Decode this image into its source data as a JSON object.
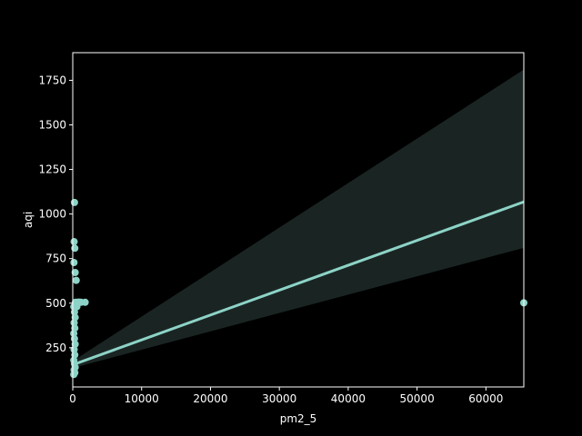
{
  "chart_data": {
    "type": "scatter",
    "xlabel": "pm2_5",
    "ylabel": "aqi",
    "xlim": [
      0,
      65500
    ],
    "ylim": [
      30,
      1905
    ],
    "x_ticks": [
      0,
      10000,
      20000,
      30000,
      40000,
      50000,
      60000
    ],
    "y_ticks": [
      250,
      500,
      750,
      1000,
      1250,
      1500,
      1750
    ],
    "colors": {
      "background": "#000000",
      "axes": "#ffffff",
      "series": "#8dd3c7",
      "band": "#1a2523"
    },
    "points": [
      [
        250,
        1065
      ],
      [
        200,
        845
      ],
      [
        300,
        808
      ],
      [
        180,
        728
      ],
      [
        350,
        672
      ],
      [
        500,
        628
      ],
      [
        800,
        505
      ],
      [
        1200,
        505
      ],
      [
        1800,
        505
      ],
      [
        400,
        505
      ],
      [
        150,
        480
      ],
      [
        250,
        450
      ],
      [
        350,
        420
      ],
      [
        200,
        390
      ],
      [
        300,
        360
      ],
      [
        150,
        330
      ],
      [
        250,
        300
      ],
      [
        350,
        270
      ],
      [
        200,
        240
      ],
      [
        300,
        210
      ],
      [
        150,
        180
      ],
      [
        250,
        160
      ],
      [
        350,
        140
      ],
      [
        200,
        125
      ],
      [
        300,
        110
      ],
      [
        150,
        100
      ],
      [
        600,
        480
      ],
      [
        700,
        505
      ],
      [
        900,
        505
      ],
      [
        1000,
        505
      ],
      [
        65500,
        502
      ]
    ],
    "regression": {
      "x": [
        400,
        65500
      ],
      "y": [
        160,
        1068
      ]
    },
    "confidence_band": {
      "x": [
        400,
        65500
      ],
      "upper": [
        185,
        1810
      ],
      "lower": [
        140,
        810
      ]
    }
  }
}
